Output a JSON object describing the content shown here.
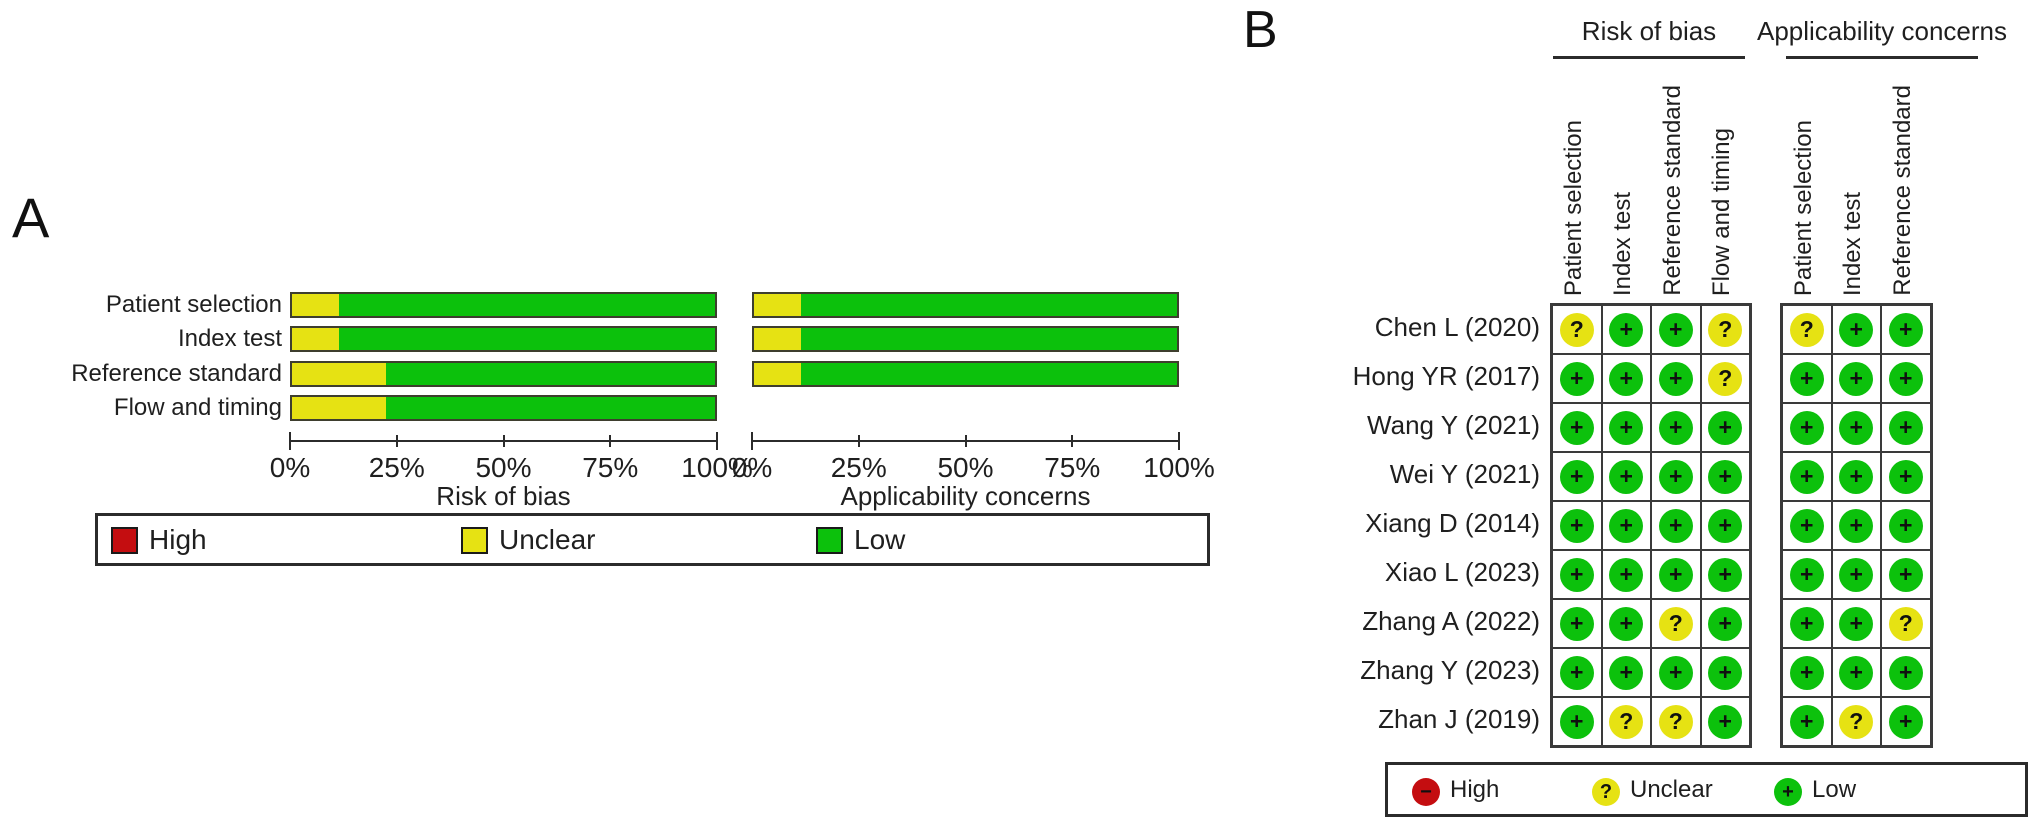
{
  "colors": {
    "high": "#c40d10",
    "unclear": "#e6e213",
    "low": "#0cc10c"
  },
  "panel_a": {
    "label": "A",
    "axis_ticks": [
      "0%",
      "25%",
      "50%",
      "75%",
      "100%"
    ],
    "charts": [
      {
        "title": "Risk of bias",
        "categories": [
          "Patient selection",
          "Index test",
          "Reference standard",
          "Flow and timing"
        ],
        "high_pct": [
          0,
          0,
          0,
          0
        ],
        "unclear_pct": [
          11.1,
          11.1,
          22.2,
          22.2
        ],
        "low_pct": [
          88.9,
          88.9,
          77.8,
          77.8
        ]
      },
      {
        "title": "Applicability concerns",
        "categories": [
          "Patient selection",
          "Index test",
          "Reference standard"
        ],
        "high_pct": [
          0,
          0,
          0
        ],
        "unclear_pct": [
          11.1,
          11.1,
          11.1
        ],
        "low_pct": [
          88.9,
          88.9,
          88.9
        ]
      }
    ],
    "legend": [
      {
        "key": "high",
        "label": "High"
      },
      {
        "key": "unclear",
        "label": "Unclear"
      },
      {
        "key": "low",
        "label": "Low"
      }
    ]
  },
  "panel_b": {
    "label": "B",
    "groups": [
      {
        "title": "Risk of bias",
        "columns": [
          "Patient selection",
          "Index test",
          "Reference standard",
          "Flow and timing"
        ]
      },
      {
        "title": "Applicability concerns",
        "columns": [
          "Patient selection",
          "Index test",
          "Reference standard"
        ]
      }
    ],
    "rating_symbols": {
      "high": "−",
      "unclear": "?",
      "low": "+"
    },
    "studies": [
      {
        "name": "Chen L (2020)",
        "risk_of_bias": [
          "unclear",
          "low",
          "low",
          "unclear"
        ],
        "applicability": [
          "unclear",
          "low",
          "low"
        ]
      },
      {
        "name": "Hong YR (2017)",
        "risk_of_bias": [
          "low",
          "low",
          "low",
          "unclear"
        ],
        "applicability": [
          "low",
          "low",
          "low"
        ]
      },
      {
        "name": "Wang Y (2021)",
        "risk_of_bias": [
          "low",
          "low",
          "low",
          "low"
        ],
        "applicability": [
          "low",
          "low",
          "low"
        ]
      },
      {
        "name": "Wei Y (2021)",
        "risk_of_bias": [
          "low",
          "low",
          "low",
          "low"
        ],
        "applicability": [
          "low",
          "low",
          "low"
        ]
      },
      {
        "name": "Xiang D (2014)",
        "risk_of_bias": [
          "low",
          "low",
          "low",
          "low"
        ],
        "applicability": [
          "low",
          "low",
          "low"
        ]
      },
      {
        "name": "Xiao L (2023)",
        "risk_of_bias": [
          "low",
          "low",
          "low",
          "low"
        ],
        "applicability": [
          "low",
          "low",
          "low"
        ]
      },
      {
        "name": "Zhang A (2022)",
        "risk_of_bias": [
          "low",
          "low",
          "unclear",
          "low"
        ],
        "applicability": [
          "low",
          "low",
          "unclear"
        ]
      },
      {
        "name": "Zhang Y (2023)",
        "risk_of_bias": [
          "low",
          "low",
          "low",
          "low"
        ],
        "applicability": [
          "low",
          "low",
          "low"
        ]
      },
      {
        "name": "Zhan J (2019)",
        "risk_of_bias": [
          "low",
          "unclear",
          "unclear",
          "low"
        ],
        "applicability": [
          "low",
          "unclear",
          "low"
        ]
      }
    ],
    "legend": [
      {
        "key": "high",
        "label": "High"
      },
      {
        "key": "unclear",
        "label": "Unclear"
      },
      {
        "key": "low",
        "label": "Low"
      }
    ]
  },
  "chart_data": [
    {
      "type": "bar",
      "orientation": "horizontal",
      "stacked": true,
      "title": "Risk of bias",
      "xlabel": "Risk of bias",
      "categories": [
        "Patient selection",
        "Index test",
        "Reference standard",
        "Flow and timing"
      ],
      "series": [
        {
          "name": "High",
          "values": [
            0,
            0,
            0,
            0
          ]
        },
        {
          "name": "Unclear",
          "values": [
            11.1,
            11.1,
            22.2,
            22.2
          ]
        },
        {
          "name": "Low",
          "values": [
            88.9,
            88.9,
            77.8,
            77.8
          ]
        }
      ],
      "xlim": [
        0,
        100
      ],
      "xticks": [
        "0%",
        "25%",
        "50%",
        "75%",
        "100%"
      ],
      "legend_position": "bottom"
    },
    {
      "type": "bar",
      "orientation": "horizontal",
      "stacked": true,
      "title": "Applicability concerns",
      "xlabel": "Applicability concerns",
      "categories": [
        "Patient selection",
        "Index test",
        "Reference standard"
      ],
      "series": [
        {
          "name": "High",
          "values": [
            0,
            0,
            0
          ]
        },
        {
          "name": "Unclear",
          "values": [
            11.1,
            11.1,
            11.1
          ]
        },
        {
          "name": "Low",
          "values": [
            88.9,
            88.9,
            88.9
          ]
        }
      ],
      "xlim": [
        0,
        100
      ],
      "xticks": [
        "0%",
        "25%",
        "50%",
        "75%",
        "100%"
      ],
      "legend_position": "bottom"
    },
    {
      "type": "table",
      "column_groups": [
        "Risk of bias",
        "Applicability concerns"
      ],
      "columns": [
        "Patient selection",
        "Index test",
        "Reference standard",
        "Flow and timing",
        "Patient selection",
        "Index test",
        "Reference standard"
      ],
      "rows": [
        {
          "study": "Chen L (2020)",
          "values": [
            "unclear",
            "low",
            "low",
            "unclear",
            "unclear",
            "low",
            "low"
          ]
        },
        {
          "study": "Hong YR (2017)",
          "values": [
            "low",
            "low",
            "low",
            "unclear",
            "low",
            "low",
            "low"
          ]
        },
        {
          "study": "Wang Y (2021)",
          "values": [
            "low",
            "low",
            "low",
            "low",
            "low",
            "low",
            "low"
          ]
        },
        {
          "study": "Wei Y (2021)",
          "values": [
            "low",
            "low",
            "low",
            "low",
            "low",
            "low",
            "low"
          ]
        },
        {
          "study": "Xiang D (2014)",
          "values": [
            "low",
            "low",
            "low",
            "low",
            "low",
            "low",
            "low"
          ]
        },
        {
          "study": "Xiao L (2023)",
          "values": [
            "low",
            "low",
            "low",
            "low",
            "low",
            "low",
            "low"
          ]
        },
        {
          "study": "Zhang A (2022)",
          "values": [
            "low",
            "low",
            "unclear",
            "low",
            "low",
            "low",
            "unclear"
          ]
        },
        {
          "study": "Zhang Y (2023)",
          "values": [
            "low",
            "low",
            "low",
            "low",
            "low",
            "low",
            "low"
          ]
        },
        {
          "study": "Zhan J (2019)",
          "values": [
            "low",
            "unclear",
            "unclear",
            "low",
            "low",
            "unclear",
            "low"
          ]
        }
      ],
      "legend": [
        "High",
        "Unclear",
        "Low"
      ]
    }
  ]
}
